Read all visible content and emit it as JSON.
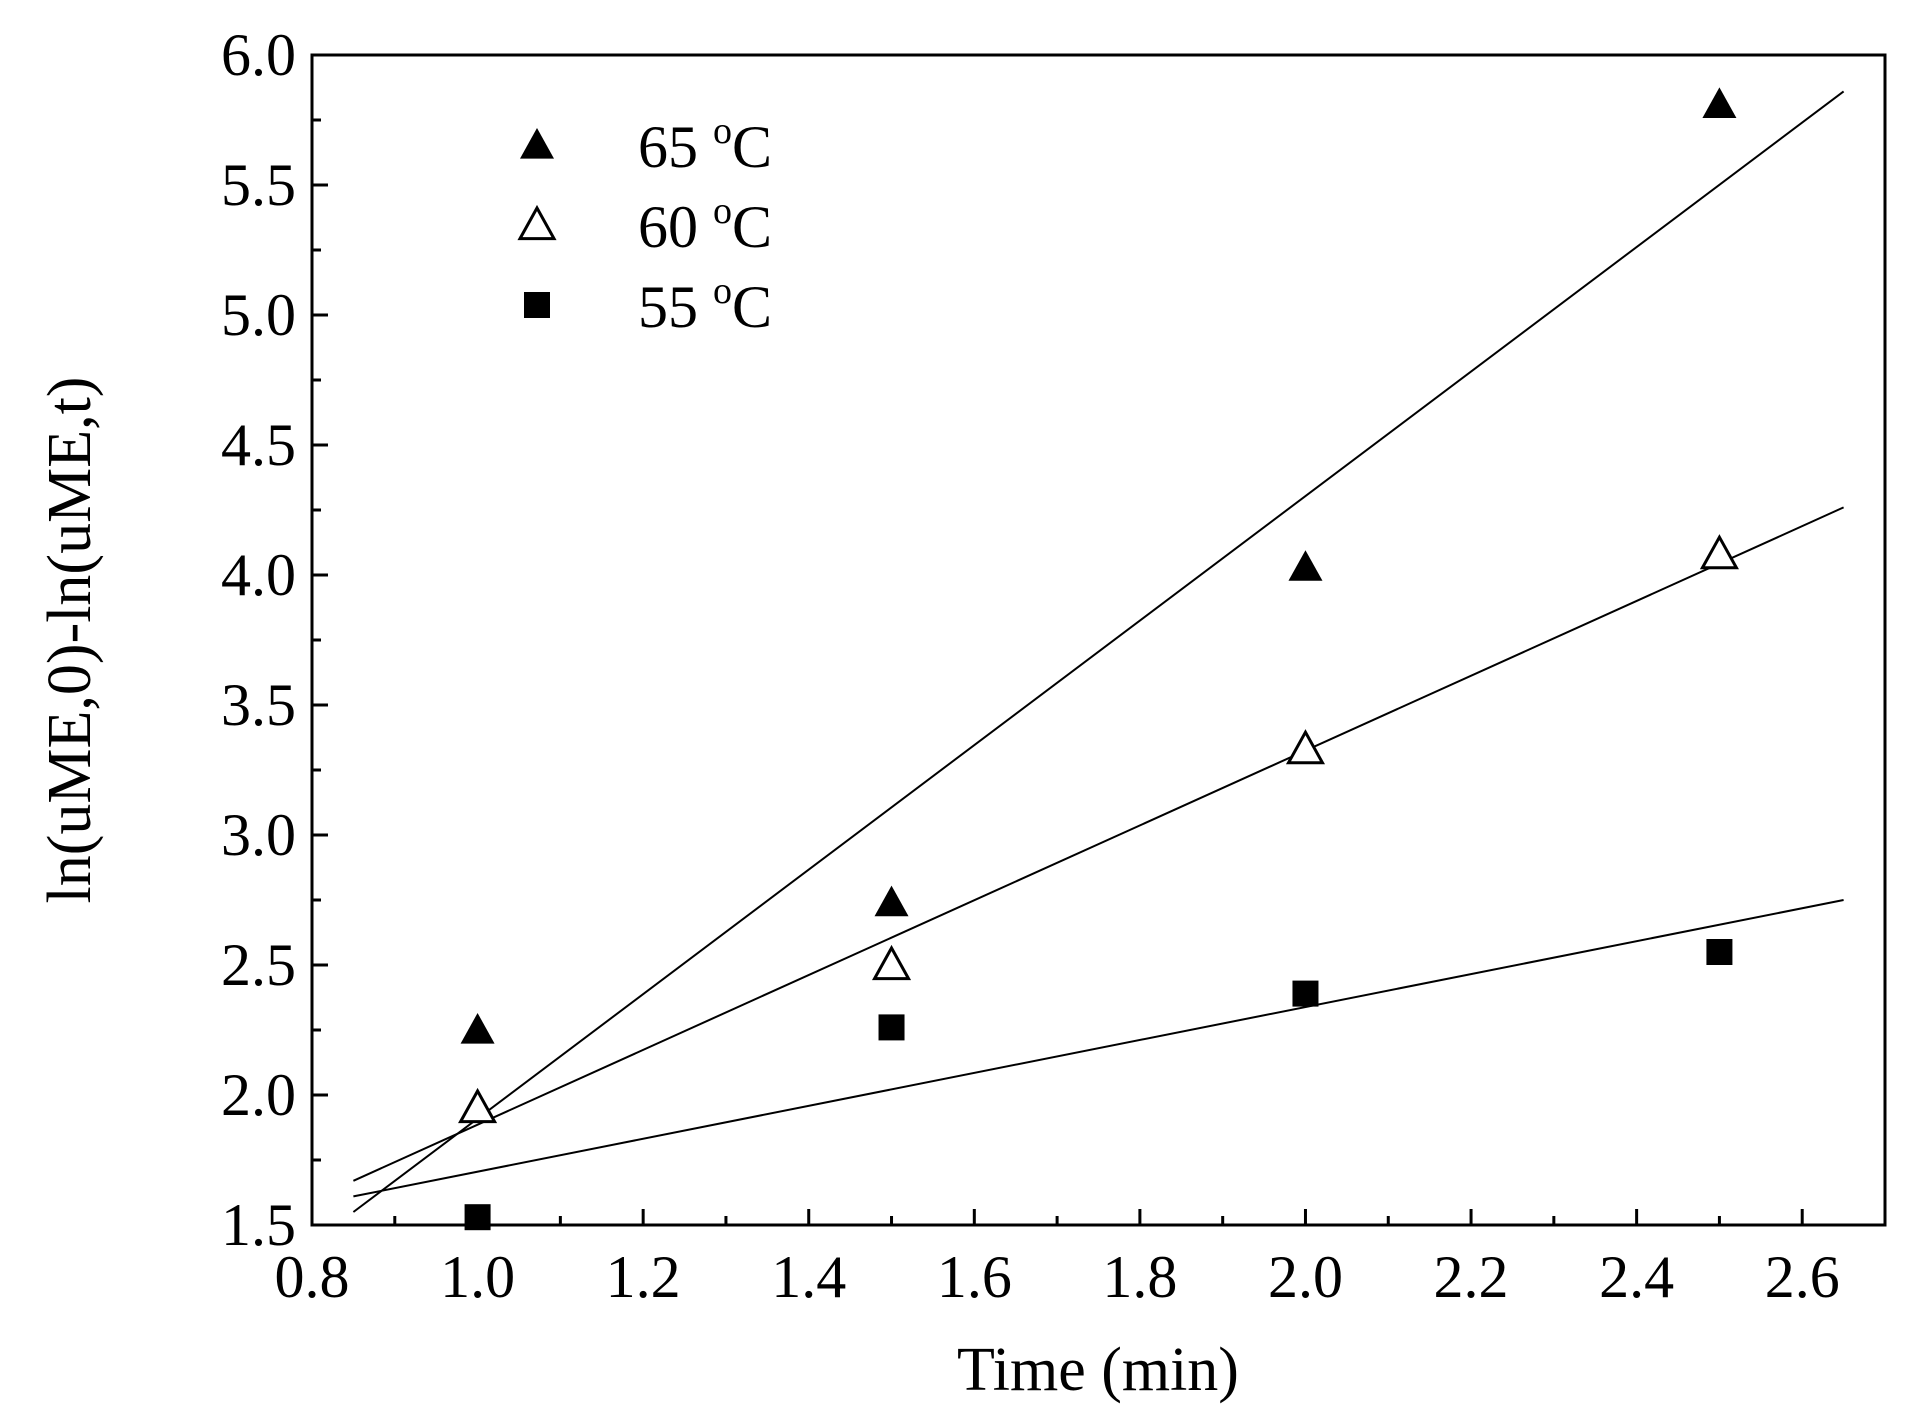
{
  "chart_data": {
    "type": "scatter",
    "title": "",
    "xlabel": "Time (min)",
    "ylabel": "ln(uME,0)-ln(uME,t)",
    "xlim": [
      0.8,
      2.7
    ],
    "ylim": [
      1.5,
      6.0
    ],
    "xticks": [
      0.8,
      1.0,
      1.2,
      1.4,
      1.6,
      1.8,
      2.0,
      2.2,
      2.4,
      2.6
    ],
    "xtick_labels": [
      "0.8",
      "1.0",
      "1.2",
      "1.4",
      "1.6",
      "1.8",
      "2.0",
      "2.2",
      "2.4",
      "2.6"
    ],
    "yticks": [
      1.5,
      2.0,
      2.5,
      3.0,
      3.5,
      4.0,
      4.5,
      5.0,
      5.5,
      6.0
    ],
    "ytick_labels": [
      "1.5",
      "2.0",
      "2.5",
      "3.0",
      "3.5",
      "4.0",
      "4.5",
      "5.0",
      "5.5",
      "6.0"
    ],
    "grid": false,
    "legend_position": "top-left",
    "series": [
      {
        "name": "65 °C",
        "legend_main": "65",
        "legend_sup": "o",
        "legend_unit": "C",
        "marker": "filled-triangle",
        "x": [
          1.0,
          1.5,
          2.0,
          2.5
        ],
        "y": [
          2.25,
          2.74,
          4.03,
          5.81
        ],
        "fit": {
          "x": [
            0.85,
            2.65
          ],
          "y": [
            1.55,
            5.86
          ]
        }
      },
      {
        "name": "60 °C",
        "legend_main": "60",
        "legend_sup": "o",
        "legend_unit": "C",
        "marker": "open-triangle",
        "x": [
          1.0,
          1.5,
          2.0,
          2.5
        ],
        "y": [
          1.95,
          2.5,
          3.33,
          4.08
        ],
        "fit": {
          "x": [
            0.85,
            2.65
          ],
          "y": [
            1.67,
            4.26
          ]
        }
      },
      {
        "name": "55 °C",
        "legend_main": "55",
        "legend_sup": "o",
        "legend_unit": "C",
        "marker": "filled-square",
        "x": [
          1.0,
          1.5,
          2.0,
          2.5
        ],
        "y": [
          1.53,
          2.26,
          2.39,
          2.55
        ],
        "fit": {
          "x": [
            0.85,
            2.65
          ],
          "y": [
            1.61,
            2.75
          ]
        }
      }
    ]
  }
}
